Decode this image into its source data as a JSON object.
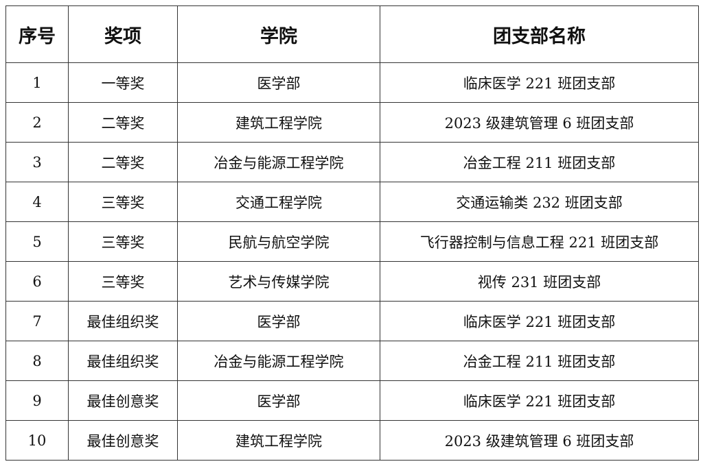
{
  "headers": [
    "序号",
    "奖项",
    "学院",
    "团支部名称"
  ],
  "rows": [
    [
      "1",
      "一等奖",
      "医学部",
      "临床医学 221 班团支部"
    ],
    [
      "2",
      "二等奖",
      "建筑工程学院",
      "2023 级建筑管理 6 班团支部"
    ],
    [
      "3",
      "二等奖",
      "冶金与能源工程学院",
      "冶金工程 211 班团支部"
    ],
    [
      "4",
      "三等奖",
      "交通工程学院",
      "交通运输类 232 班团支部"
    ],
    [
      "5",
      "三等奖",
      "民航与航空学院",
      "飞行器控制与信息工程 221 班团支部"
    ],
    [
      "6",
      "三等奖",
      "艺术与传媒学院",
      "视传 231 班团支部"
    ],
    [
      "7",
      "最佳组织奖",
      "医学部",
      "临床医学 221 班团支部"
    ],
    [
      "8",
      "最佳组织奖",
      "冶金与能源工程学院",
      "冶金工程 211 班团支部"
    ],
    [
      "9",
      "最佳创意奖",
      "医学部",
      "临床医学 221 班团支部"
    ],
    [
      "10",
      "最佳创意奖",
      "建筑工程学院",
      "2023 级建筑管理 6 班团支部"
    ]
  ]
}
